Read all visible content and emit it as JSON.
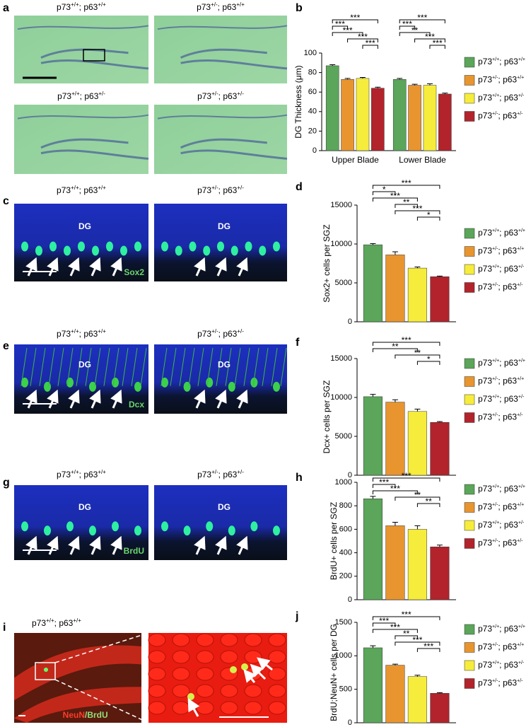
{
  "figure": {
    "panels": [
      {
        "letter": "a",
        "labels": [
          "p73+/+; p63+/+",
          "p73+/-; p63+/+",
          "p73+/+; p63+/-",
          "p73+/-; p63+/-"
        ]
      },
      {
        "letter": "c",
        "labels": [
          "p73+/+; p63+/+",
          "p73+/-; p63+/-"
        ],
        "region": "DG",
        "stain": "Sox2"
      },
      {
        "letter": "e",
        "labels": [
          "p73+/+; p63+/+",
          "p73+/-; p63+/-"
        ],
        "region": "DG",
        "stain": "Dcx"
      },
      {
        "letter": "g",
        "labels": [
          "p73+/+; p63+/+",
          "p73+/-; p63+/-"
        ],
        "region": "DG",
        "stain": "BrdU"
      },
      {
        "letter": "i",
        "labels": [
          "p73+/+; p63+/+"
        ],
        "stain": [
          "NeuN",
          "/BrdU"
        ]
      }
    ]
  },
  "chart_data": [
    {
      "type": "bar",
      "panel": "b",
      "ylabel": "DG Thickness (μm)",
      "categories": [
        "Upper Blade",
        "Lower Blade"
      ],
      "series": [
        {
          "name": "p73+/+; p63+/+",
          "color": "#5ba65a",
          "values": [
            87,
            73
          ],
          "errors": [
            1,
            1
          ]
        },
        {
          "name": "p73+/-; p63+/+",
          "color": "#e8952f",
          "values": [
            73,
            67
          ],
          "errors": [
            1,
            1
          ]
        },
        {
          "name": "p73+/+; p63+/-",
          "color": "#f6ec3b",
          "values": [
            74,
            67
          ],
          "errors": [
            1,
            1.5
          ]
        },
        {
          "name": "p73+/-; p63+/-",
          "color": "#b2232b",
          "values": [
            64,
            58
          ],
          "errors": [
            1,
            1
          ]
        }
      ],
      "ylim": [
        0,
        100
      ],
      "yticks": [
        0,
        20,
        40,
        60,
        80,
        100
      ],
      "brackets": [
        {
          "category": 0,
          "between": [
            0,
            3
          ],
          "label": "***"
        },
        {
          "category": 0,
          "between": [
            0,
            1
          ],
          "label": "***"
        },
        {
          "category": 0,
          "between": [
            0,
            2
          ],
          "label": "***"
        },
        {
          "category": 0,
          "between": [
            1,
            3
          ],
          "label": "***"
        },
        {
          "category": 0,
          "between": [
            2,
            3
          ],
          "label": "***"
        },
        {
          "category": 1,
          "between": [
            0,
            3
          ],
          "label": "***"
        },
        {
          "category": 1,
          "between": [
            0,
            1
          ],
          "label": "***"
        },
        {
          "category": 1,
          "between": [
            0,
            2
          ],
          "label": "**"
        },
        {
          "category": 1,
          "between": [
            1,
            3
          ],
          "label": "***"
        },
        {
          "category": 1,
          "between": [
            2,
            3
          ],
          "label": "***"
        }
      ]
    },
    {
      "type": "bar",
      "panel": "d",
      "ylabel": "Sox2+ cells per SGZ",
      "categories": [
        null
      ],
      "series": [
        {
          "name": "p73+/+; p63+/+",
          "color": "#5ba65a",
          "values": [
            9900
          ],
          "errors": [
            150
          ]
        },
        {
          "name": "p73+/-; p63+/+",
          "color": "#e8952f",
          "values": [
            8600
          ],
          "errors": [
            400
          ]
        },
        {
          "name": "p73+/+; p63+/-",
          "color": "#f6ec3b",
          "values": [
            6900
          ],
          "errors": [
            150
          ]
        },
        {
          "name": "p73+/-; p63+/-",
          "color": "#b2232b",
          "values": [
            5800
          ],
          "errors": [
            80
          ]
        }
      ],
      "ylim": [
        0,
        15000
      ],
      "yticks": [
        0,
        5000,
        10000,
        15000
      ],
      "brackets": [
        {
          "category": 0,
          "between": [
            0,
            3
          ],
          "label": "***"
        },
        {
          "category": 0,
          "between": [
            0,
            1
          ],
          "label": "*"
        },
        {
          "category": 0,
          "between": [
            0,
            2
          ],
          "label": "***"
        },
        {
          "category": 0,
          "between": [
            1,
            2
          ],
          "label": "**"
        },
        {
          "category": 0,
          "between": [
            1,
            3
          ],
          "label": "***"
        },
        {
          "category": 0,
          "between": [
            2,
            3
          ],
          "label": "*"
        }
      ]
    },
    {
      "type": "bar",
      "panel": "f",
      "ylabel": "Dcx+ cells per SGZ",
      "categories": [
        null
      ],
      "series": [
        {
          "name": "p73+/+; p63+/+",
          "color": "#5ba65a",
          "values": [
            10100
          ],
          "errors": [
            300
          ]
        },
        {
          "name": "p73+/-; p63+/+",
          "color": "#e8952f",
          "values": [
            9400
          ],
          "errors": [
            300
          ]
        },
        {
          "name": "p73+/+; p63+/-",
          "color": "#f6ec3b",
          "values": [
            8200
          ],
          "errors": [
            300
          ]
        },
        {
          "name": "p73+/-; p63+/-",
          "color": "#b2232b",
          "values": [
            6800
          ],
          "errors": [
            100
          ]
        }
      ],
      "ylim": [
        0,
        15000
      ],
      "yticks": [
        0,
        5000,
        10000,
        15000
      ],
      "brackets": [
        {
          "category": 0,
          "between": [
            0,
            3
          ],
          "label": "***"
        },
        {
          "category": 0,
          "between": [
            0,
            2
          ],
          "label": "**"
        },
        {
          "category": 0,
          "between": [
            1,
            3
          ],
          "label": "**"
        },
        {
          "category": 0,
          "between": [
            2,
            3
          ],
          "label": "*"
        }
      ]
    },
    {
      "type": "bar",
      "panel": "h",
      "ylabel": "BrdU+ cells per SGZ",
      "categories": [
        null
      ],
      "series": [
        {
          "name": "p73+/+; p63+/+",
          "color": "#5ba65a",
          "values": [
            860
          ],
          "errors": [
            20
          ]
        },
        {
          "name": "p73+/-; p63+/+",
          "color": "#e8952f",
          "values": [
            630
          ],
          "errors": [
            30
          ]
        },
        {
          "name": "p73+/+; p63+/-",
          "color": "#f6ec3b",
          "values": [
            600
          ],
          "errors": [
            30
          ]
        },
        {
          "name": "p73+/-; p63+/-",
          "color": "#b2232b",
          "values": [
            450
          ],
          "errors": [
            15
          ]
        }
      ],
      "ylim": [
        0,
        1000
      ],
      "yticks": [
        0,
        200,
        400,
        600,
        800,
        1000
      ],
      "brackets": [
        {
          "category": 0,
          "between": [
            0,
            3
          ],
          "label": "***"
        },
        {
          "category": 0,
          "between": [
            0,
            1
          ],
          "label": "***"
        },
        {
          "category": 0,
          "between": [
            0,
            2
          ],
          "label": "***"
        },
        {
          "category": 0,
          "between": [
            1,
            3
          ],
          "label": "**"
        },
        {
          "category": 0,
          "between": [
            2,
            3
          ],
          "label": "**"
        }
      ]
    },
    {
      "type": "bar",
      "panel": "j",
      "ylabel": "BrdU;NeuN+ cells per DG",
      "categories": [
        null
      ],
      "series": [
        {
          "name": "p73+/+; p63+/+",
          "color": "#5ba65a",
          "values": [
            1120
          ],
          "errors": [
            30
          ]
        },
        {
          "name": "p73+/-; p63+/+",
          "color": "#e8952f",
          "values": [
            860
          ],
          "errors": [
            15
          ]
        },
        {
          "name": "p73+/+; p63+/-",
          "color": "#f6ec3b",
          "values": [
            690
          ],
          "errors": [
            20
          ]
        },
        {
          "name": "p73+/-; p63+/-",
          "color": "#b2232b",
          "values": [
            440
          ],
          "errors": [
            10
          ]
        }
      ],
      "ylim": [
        0,
        1500
      ],
      "yticks": [
        0,
        500,
        1000,
        1500
      ],
      "brackets": [
        {
          "category": 0,
          "between": [
            0,
            3
          ],
          "label": "***"
        },
        {
          "category": 0,
          "between": [
            0,
            1
          ],
          "label": "***"
        },
        {
          "category": 0,
          "between": [
            0,
            2
          ],
          "label": "***"
        },
        {
          "category": 0,
          "between": [
            1,
            2
          ],
          "label": "**"
        },
        {
          "category": 0,
          "between": [
            1,
            3
          ],
          "label": "***"
        },
        {
          "category": 0,
          "between": [
            2,
            3
          ],
          "label": "***"
        }
      ]
    }
  ]
}
